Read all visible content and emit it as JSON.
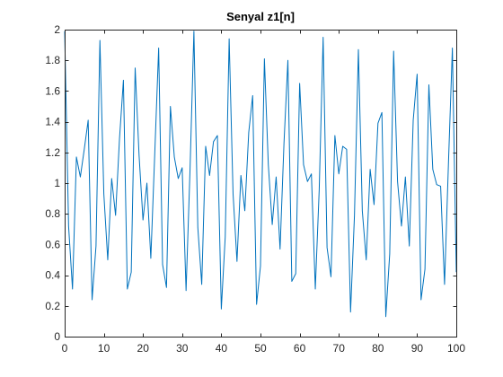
{
  "chart_data": {
    "type": "line",
    "title": "Senyal z1[n]",
    "xlabel": "",
    "ylabel": "",
    "xlim": [
      0,
      100
    ],
    "ylim": [
      0,
      2
    ],
    "xticks": [
      0,
      10,
      20,
      30,
      40,
      50,
      60,
      70,
      80,
      90,
      100
    ],
    "yticks": [
      0,
      0.2,
      0.4,
      0.6,
      0.8,
      1,
      1.2,
      1.4,
      1.6,
      1.8,
      2
    ],
    "xtick_labels": [
      "0",
      "10",
      "20",
      "30",
      "40",
      "50",
      "60",
      "70",
      "80",
      "90",
      "100"
    ],
    "ytick_labels": [
      "0",
      "0.2",
      "0.4",
      "0.6",
      "0.8",
      "1",
      "1.2",
      "1.4",
      "1.6",
      "1.8",
      "2"
    ],
    "grid": false,
    "series": [
      {
        "color": "#0072BD",
        "x": [
          0,
          1,
          2,
          3,
          4,
          5,
          6,
          7,
          8,
          9,
          10,
          11,
          12,
          13,
          14,
          15,
          16,
          17,
          18,
          19,
          20,
          21,
          22,
          23,
          24,
          25,
          26,
          27,
          28,
          29,
          30,
          31,
          32,
          33,
          34,
          35,
          36,
          37,
          38,
          39,
          40,
          41,
          42,
          43,
          44,
          45,
          46,
          47,
          48,
          49,
          50,
          51,
          52,
          53,
          54,
          55,
          56,
          57,
          58,
          59,
          60,
          61,
          62,
          63,
          64,
          65,
          66,
          67,
          68,
          69,
          70,
          71,
          72,
          73,
          74,
          75,
          76,
          77,
          78,
          79,
          80,
          81,
          82,
          83,
          84,
          85,
          86,
          87,
          88,
          89,
          90,
          91,
          92,
          93,
          94,
          95,
          96,
          97,
          98,
          99,
          100
        ],
        "values": [
          1.99,
          0.72,
          0.31,
          1.17,
          1.04,
          1.22,
          1.41,
          0.24,
          0.59,
          1.93,
          0.93,
          0.5,
          1.03,
          0.79,
          1.29,
          1.67,
          0.31,
          0.42,
          1.75,
          1.18,
          0.76,
          1.0,
          0.51,
          1.19,
          1.88,
          0.47,
          0.32,
          1.5,
          1.17,
          1.03,
          1.1,
          0.3,
          1.08,
          1.99,
          0.71,
          0.34,
          1.24,
          1.05,
          1.27,
          1.31,
          0.18,
          0.65,
          1.94,
          0.93,
          0.49,
          1.05,
          0.82,
          1.33,
          1.57,
          0.21,
          0.46,
          1.81,
          1.12,
          0.73,
          1.04,
          0.57,
          1.26,
          1.8,
          0.36,
          0.41,
          1.65,
          1.12,
          1.01,
          1.06,
          0.31,
          0.96,
          1.95,
          0.58,
          0.39,
          1.31,
          1.06,
          1.24,
          1.22,
          0.16,
          0.79,
          1.87,
          0.82,
          0.5,
          1.09,
          0.86,
          1.39,
          1.46,
          0.13,
          0.54,
          1.86,
          1.01,
          0.72,
          1.04,
          0.59,
          1.41,
          1.71,
          0.24,
          0.44,
          1.64,
          1.09,
          0.99,
          0.98,
          0.34,
          1.13,
          1.88,
          0.42
        ]
      }
    ]
  }
}
